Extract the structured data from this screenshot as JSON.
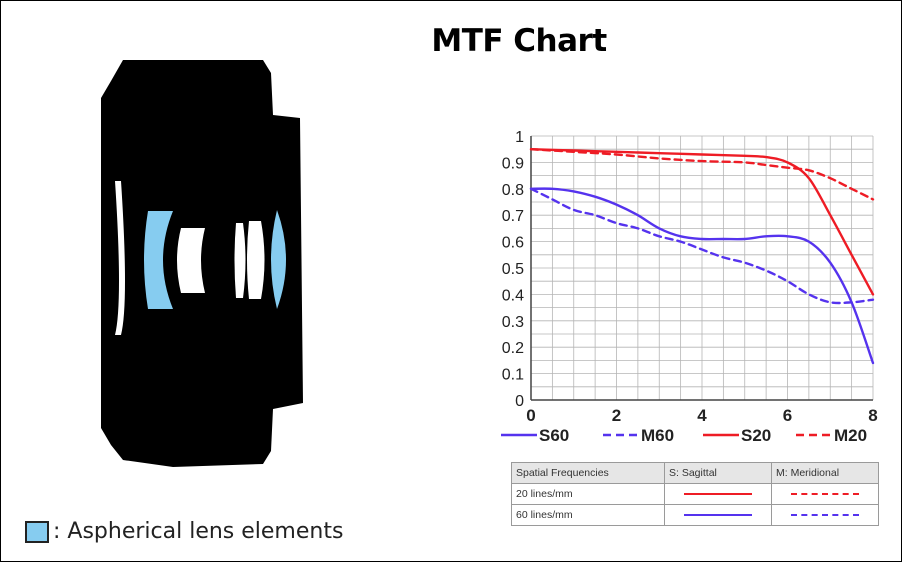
{
  "title": "MTF Chart",
  "note": {
    "text": ": Aspherical lens elements",
    "swatch_color": "#86ccf0",
    "swatch_icon": "aspherical-swatch-icon"
  },
  "colors": {
    "s60": "#5533ee",
    "m60": "#5533ee",
    "s20": "#ee1c25",
    "m20": "#ee1c25",
    "grid": "#b5b5b5",
    "aspherical": "#86ccf0",
    "lens_body": "#000000"
  },
  "chart_data": {
    "type": "line",
    "title": "MTF Chart",
    "xlabel": "",
    "ylabel": "",
    "xlim": [
      0,
      8
    ],
    "ylim": [
      0,
      1
    ],
    "x_ticks": [
      0,
      2,
      4,
      6,
      8
    ],
    "y_ticks": [
      0,
      0.1,
      0.2,
      0.3,
      0.4,
      0.5,
      0.6,
      0.7,
      0.8,
      0.9,
      1
    ],
    "y_tick_labels": [
      "0",
      "0.1",
      "0.2",
      "0.3",
      "0.4",
      "0.5",
      "0.6",
      "0.7",
      "0.8",
      "0.9",
      "1"
    ],
    "grid": true,
    "legend_position": "bottom",
    "series": [
      {
        "name": "S60",
        "style": "solid",
        "color": "#5533ee",
        "x": [
          0,
          0.5,
          1,
          1.5,
          2,
          2.5,
          3,
          3.5,
          4,
          4.5,
          5,
          5.5,
          6,
          6.5,
          7,
          7.5,
          8
        ],
        "y": [
          0.8,
          0.8,
          0.79,
          0.77,
          0.74,
          0.7,
          0.65,
          0.62,
          0.61,
          0.61,
          0.61,
          0.62,
          0.62,
          0.6,
          0.52,
          0.37,
          0.14
        ]
      },
      {
        "name": "M60",
        "style": "dashed",
        "color": "#5533ee",
        "x": [
          0,
          0.5,
          1,
          1.5,
          2,
          2.5,
          3,
          3.5,
          4,
          4.5,
          5,
          5.5,
          6,
          6.5,
          7,
          7.5,
          8
        ],
        "y": [
          0.8,
          0.76,
          0.72,
          0.7,
          0.67,
          0.65,
          0.62,
          0.6,
          0.57,
          0.54,
          0.52,
          0.49,
          0.45,
          0.4,
          0.37,
          0.37,
          0.38
        ]
      },
      {
        "name": "S20",
        "style": "solid",
        "color": "#ee1c25",
        "x": [
          0,
          1,
          2,
          3,
          4,
          5,
          5.5,
          6,
          6.5,
          7,
          7.5,
          8
        ],
        "y": [
          0.95,
          0.945,
          0.94,
          0.935,
          0.93,
          0.925,
          0.92,
          0.9,
          0.84,
          0.7,
          0.55,
          0.4
        ]
      },
      {
        "name": "M20",
        "style": "dashed",
        "color": "#ee1c25",
        "x": [
          0,
          1,
          2,
          3,
          4,
          5,
          5.5,
          6,
          6.5,
          7,
          7.5,
          8
        ],
        "y": [
          0.95,
          0.94,
          0.93,
          0.915,
          0.905,
          0.9,
          0.89,
          0.88,
          0.87,
          0.84,
          0.8,
          0.76
        ]
      }
    ]
  },
  "legend": [
    {
      "label": "S60",
      "color": "#5533ee",
      "style": "solid"
    },
    {
      "label": "M60",
      "color": "#5533ee",
      "style": "dashed"
    },
    {
      "label": "S20",
      "color": "#ee1c25",
      "style": "solid"
    },
    {
      "label": "M20",
      "color": "#ee1c25",
      "style": "dashed"
    }
  ],
  "reference_table": {
    "headers": [
      "Spatial Frequencies",
      "S: Sagittal",
      "M: Meridional"
    ],
    "rows": [
      {
        "label": "20 lines/mm",
        "color": "#ee1c25"
      },
      {
        "label": "60 lines/mm",
        "color": "#5533ee"
      }
    ]
  }
}
